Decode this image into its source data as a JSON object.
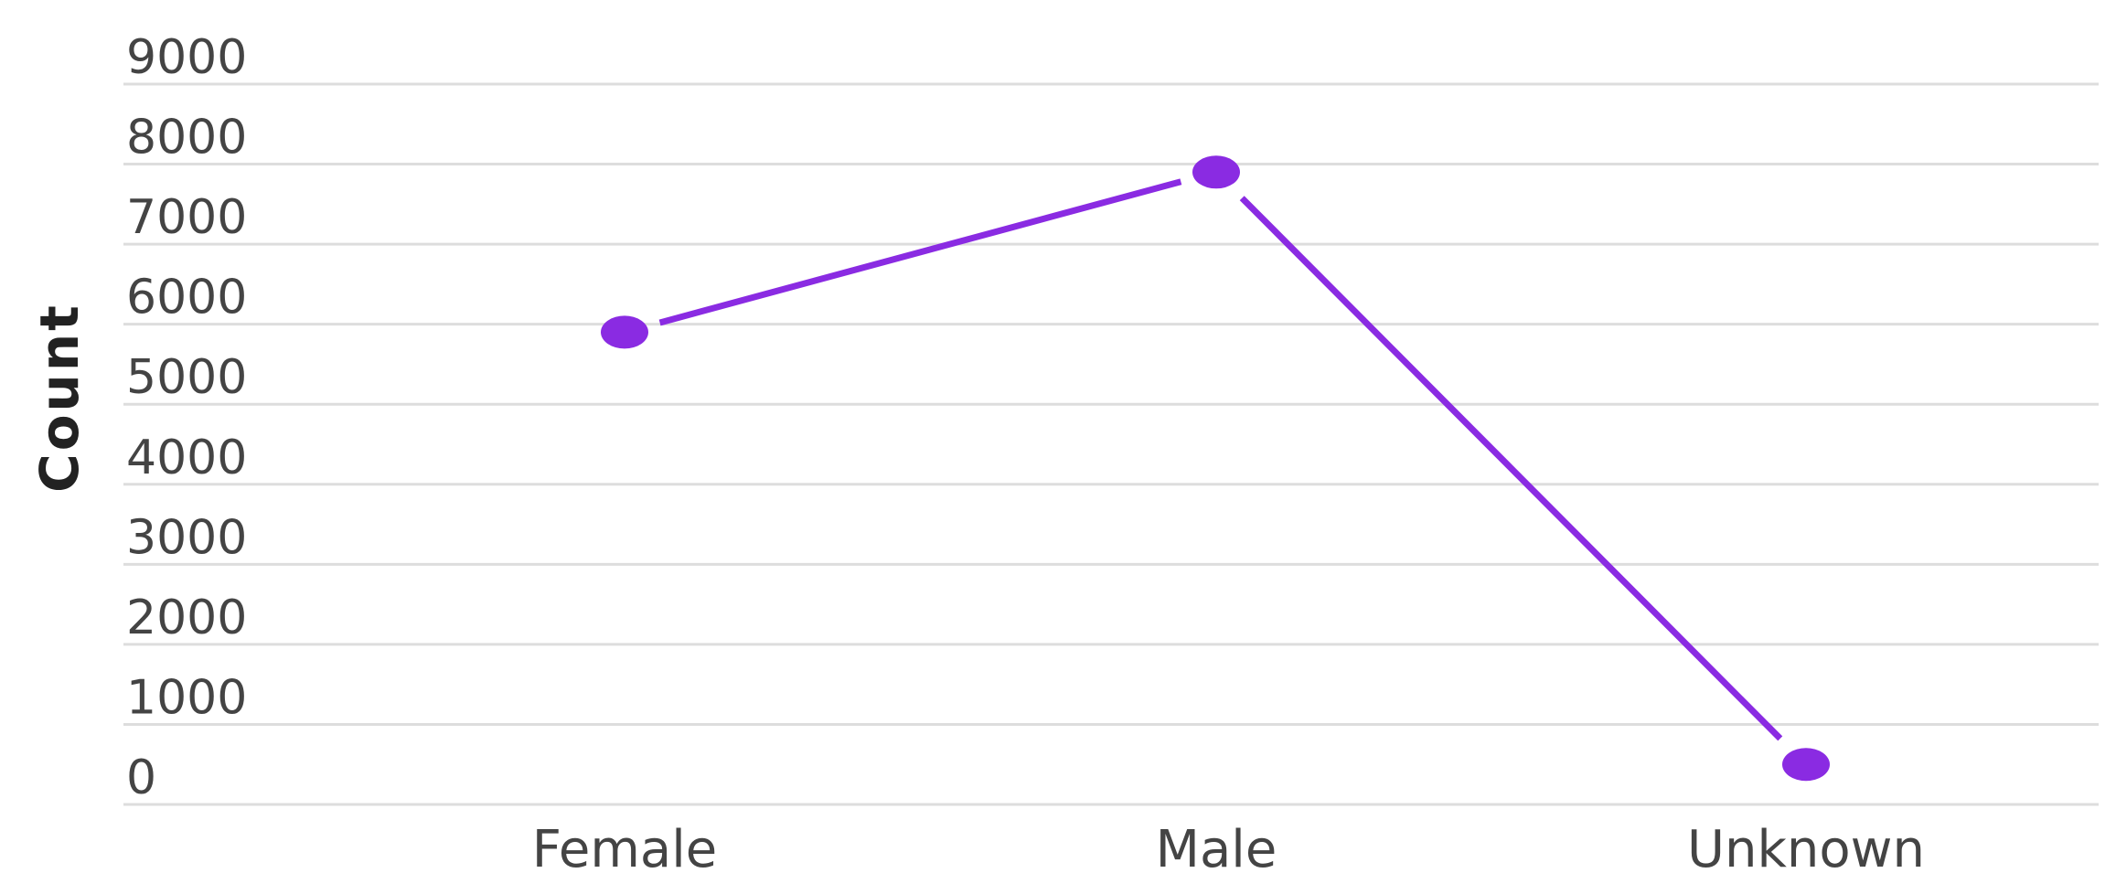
{
  "chart_data": {
    "type": "line",
    "title": "",
    "xlabel": "",
    "ylabel": "Count",
    "categories": [
      "Female",
      "Male",
      "Unknown"
    ],
    "series": [
      {
        "values": [
          5900,
          7900,
          500
        ],
        "color": "#8a2be2"
      }
    ],
    "ylim": [
      0,
      9000
    ],
    "yticks": [
      "0",
      "1000",
      "2000",
      "3000",
      "4000",
      "5000",
      "6000",
      "7000",
      "8000",
      "9000"
    ],
    "grid": true,
    "legend": "none"
  }
}
